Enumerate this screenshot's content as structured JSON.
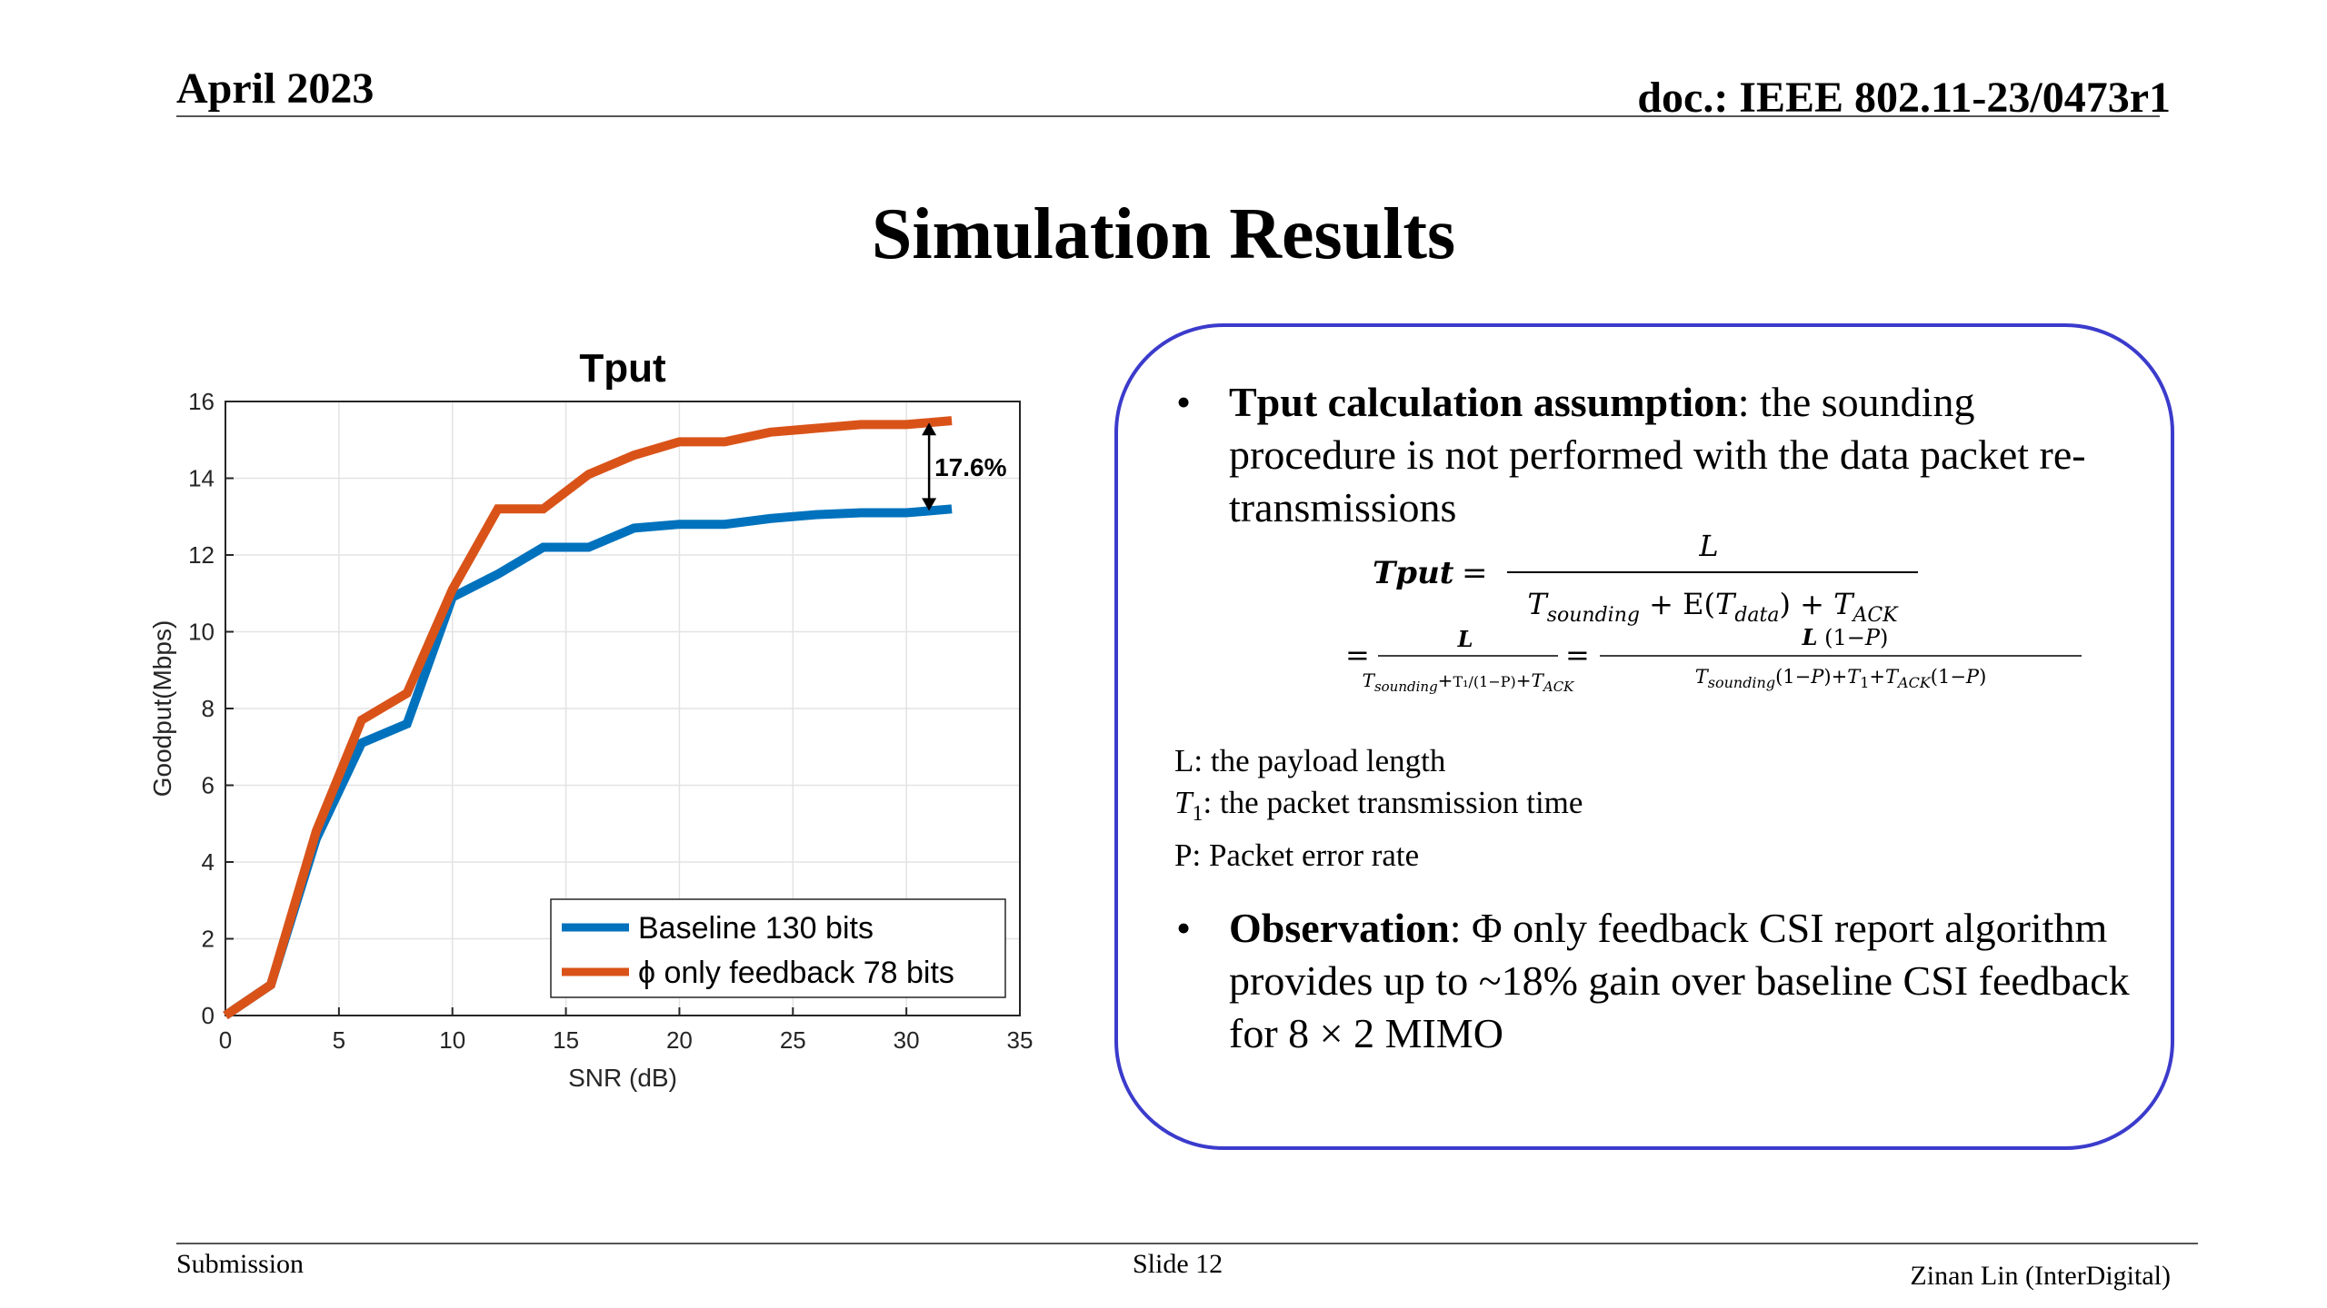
{
  "header": {
    "date": "April 2023",
    "doc": "doc.: IEEE 802.11-23/0473r1"
  },
  "slide_title": "Simulation Results",
  "chart_data": {
    "type": "line",
    "title": "Tput",
    "xlabel": "SNR (dB)",
    "ylabel": "Goodput(Mbps)",
    "xlim": [
      0,
      35
    ],
    "ylim": [
      0,
      16
    ],
    "xticks": [
      0,
      5,
      10,
      15,
      20,
      25,
      30,
      35
    ],
    "yticks": [
      0,
      2,
      4,
      6,
      8,
      10,
      12,
      14,
      16
    ],
    "grid": true,
    "legend_position": "bottom-right",
    "series": [
      {
        "name": "Baseline 130 bits",
        "color": "#0072bd",
        "x": [
          0,
          2,
          4,
          6,
          8,
          10,
          12,
          14,
          16,
          18,
          20,
          22,
          24,
          26,
          28,
          30,
          32
        ],
        "y": [
          0,
          0.8,
          4.6,
          7.1,
          7.6,
          10.9,
          11.5,
          12.2,
          12.2,
          12.7,
          12.8,
          12.8,
          12.95,
          13.05,
          13.1,
          13.1,
          13.2
        ]
      },
      {
        "name": "ϕ only feedback 78 bits",
        "color": "#d95319",
        "x": [
          0,
          2,
          4,
          6,
          8,
          10,
          12,
          14,
          16,
          18,
          20,
          22,
          24,
          26,
          28,
          30,
          32
        ],
        "y": [
          0,
          0.8,
          4.8,
          7.7,
          8.4,
          11.1,
          13.2,
          13.2,
          14.1,
          14.6,
          14.95,
          14.95,
          15.2,
          15.3,
          15.4,
          15.4,
          15.5
        ]
      }
    ],
    "annotation": {
      "text": "17.6%",
      "x": 31,
      "y_from": 13.15,
      "y_to": 15.45
    }
  },
  "panel": {
    "bullet1": {
      "bold": "Tput calculation assumption",
      "rest": ": the sounding procedure is not performed with the data packet re-transmissions"
    },
    "definitions": [
      {
        "symbol": "L",
        "sub": "",
        "text": ": the payload length"
      },
      {
        "symbol": "T",
        "sub": "1",
        "text": ": the packet transmission time"
      },
      {
        "symbol": "P",
        "sub": "",
        "text": ": Packet error rate"
      }
    ],
    "bullet2": {
      "bold": "Observation",
      "rest": ": Φ only feedback CSI report algorithm provides up to ~18% gain over baseline CSI feedback for 8 × 2 MIMO"
    }
  },
  "formula": {
    "lhs": "Tput",
    "line1_num": "L",
    "line1_den": "T_sounding + E(T_data) + T_ACK",
    "line2_num_a": "L",
    "line2_den_a": "T_sounding + T1/(1−P) + T_ACK",
    "line2_num_b": "L (1−P)",
    "line2_den_b": "T_sounding(1−P)+T1+T_ACK(1−P)"
  },
  "footer": {
    "left": "Submission",
    "center": "Slide 12",
    "right": "Zinan Lin (InterDigital)"
  }
}
